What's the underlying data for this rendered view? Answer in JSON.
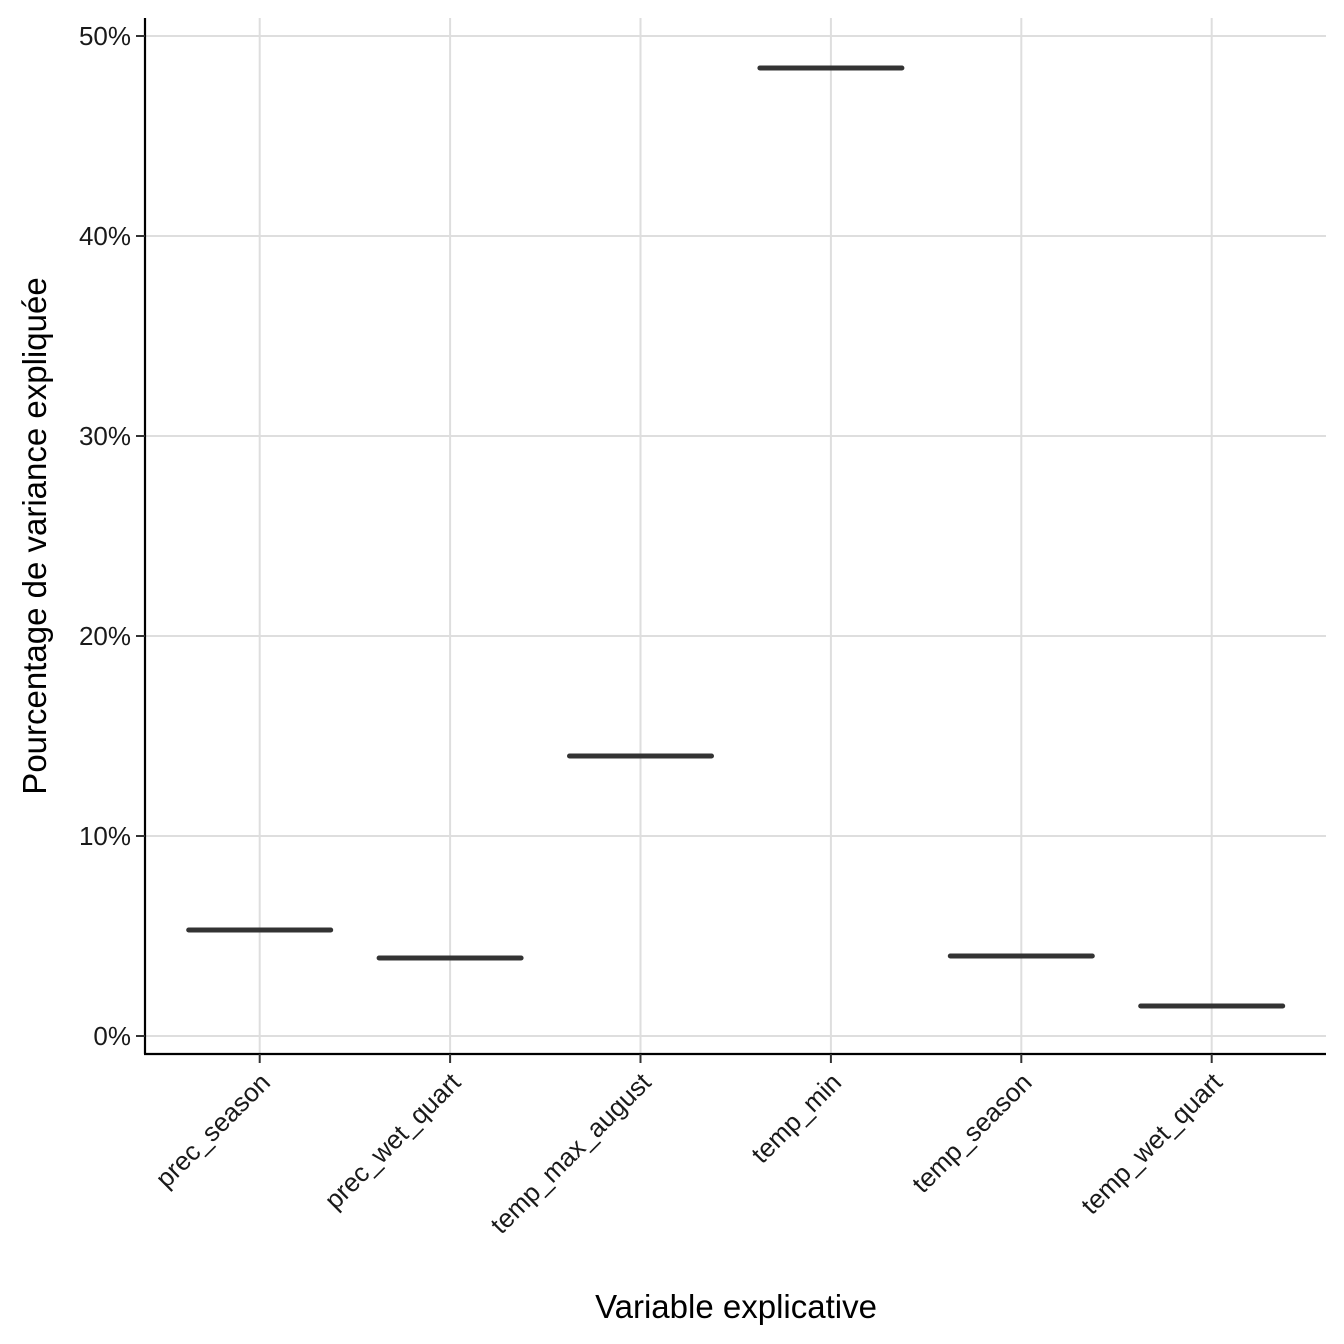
{
  "chart_data": {
    "type": "box",
    "xlabel": "Variable explicative",
    "ylabel": "Pourcentage de variance expliquée",
    "categories": [
      "prec_season",
      "prec_wet_quart",
      "temp_max_august",
      "temp_min",
      "temp_season",
      "temp_wet_quart"
    ],
    "values": [
      5.3,
      3.9,
      14.0,
      48.4,
      4.0,
      1.5
    ],
    "ylim": [
      0,
      50
    ],
    "yticks": [
      0,
      10,
      20,
      30,
      40,
      50
    ],
    "ytick_labels": [
      "0%",
      "10%",
      "20%",
      "30%",
      "40%",
      "50%"
    ],
    "grid": true
  }
}
